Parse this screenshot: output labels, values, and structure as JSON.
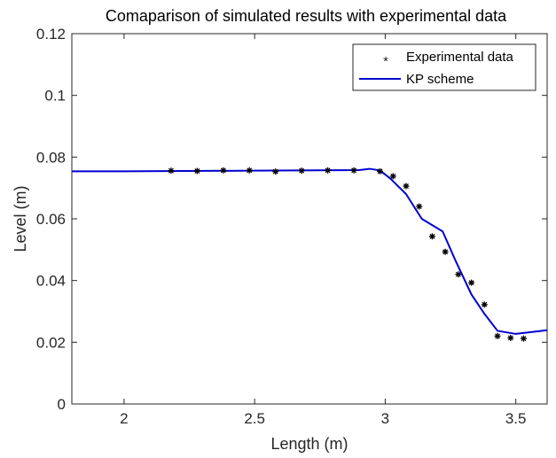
{
  "chart_data": {
    "type": "line",
    "title": "Comaparison of simulated results with experimental data",
    "xlabel": "Length (m)",
    "ylabel": "Level (m)",
    "xlim": [
      1.8,
      3.62
    ],
    "ylim": [
      0,
      0.12
    ],
    "xticks": [
      2,
      2.5,
      3,
      3.5
    ],
    "xtick_labels": [
      "2",
      "2.5",
      "3",
      "3.5"
    ],
    "yticks": [
      0,
      0.02,
      0.04,
      0.06,
      0.08,
      0.1,
      0.12
    ],
    "ytick_labels": [
      "0",
      "0.02",
      "0.04",
      "0.06",
      "0.08",
      "0.1",
      "0.12"
    ],
    "grid": false,
    "legend_position": "top-right",
    "series": [
      {
        "name": "Experimental data",
        "type": "scatter",
        "marker": "*",
        "color": "#000000",
        "x": [
          2.18,
          2.28,
          2.38,
          2.48,
          2.58,
          2.68,
          2.78,
          2.88,
          2.98,
          3.03,
          3.08,
          3.13,
          3.18,
          3.23,
          3.28,
          3.33,
          3.38,
          3.43,
          3.48,
          3.53
        ],
        "y": [
          0.0756,
          0.0755,
          0.0757,
          0.0757,
          0.0753,
          0.0756,
          0.0757,
          0.0757,
          0.0754,
          0.0738,
          0.0706,
          0.064,
          0.0543,
          0.0493,
          0.042,
          0.0393,
          0.0322,
          0.022,
          0.0214,
          0.0212
        ]
      },
      {
        "name": "KP scheme",
        "type": "line",
        "color": "#0000d0",
        "x": [
          1.8,
          2.0,
          2.5,
          2.9,
          2.94,
          2.98,
          3.02,
          3.08,
          3.14,
          3.22,
          3.27,
          3.33,
          3.38,
          3.43,
          3.5,
          3.62
        ],
        "y": [
          0.0754,
          0.0754,
          0.0756,
          0.0758,
          0.0762,
          0.0757,
          0.073,
          0.068,
          0.06,
          0.0559,
          0.0463,
          0.0355,
          0.0292,
          0.0237,
          0.0227,
          0.0239
        ]
      }
    ]
  }
}
